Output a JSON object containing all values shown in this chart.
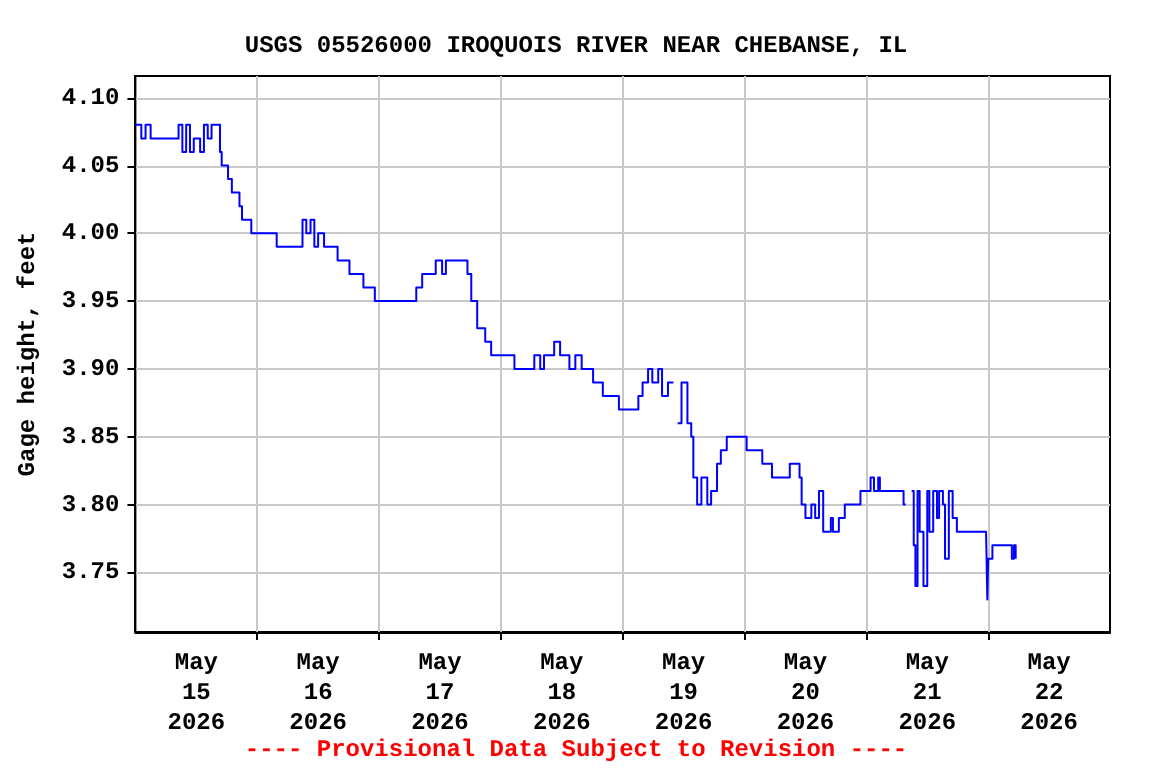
{
  "chart_data": {
    "type": "step",
    "title": "USGS 05526000 IROQUOIS RIVER NEAR CHEBANSE, IL",
    "ylabel": "Gage height, feet",
    "annotations": [
      "---- Provisional Data Subject to Revision ----"
    ],
    "x": [
      "2026-05-15T00:00",
      "2026-05-15T01:10",
      "2026-05-15T02:00",
      "2026-05-15T03:00",
      "2026-05-15T08:00",
      "2026-05-15T08:30",
      "2026-05-15T09:15",
      "2026-05-15T10:00",
      "2026-05-15T10:45",
      "2026-05-15T11:30",
      "2026-05-15T12:45",
      "2026-05-15T13:30",
      "2026-05-15T14:15",
      "2026-05-15T15:00",
      "2026-05-15T16:00",
      "2026-05-15T16:40",
      "2026-05-15T17:00",
      "2026-05-15T18:15",
      "2026-05-15T19:00",
      "2026-05-15T20:30",
      "2026-05-15T21:00",
      "2026-05-15T22:50",
      "2026-05-16T03:30",
      "2026-05-16T03:50",
      "2026-05-16T08:30",
      "2026-05-16T08:55",
      "2026-05-16T09:40",
      "2026-05-16T10:30",
      "2026-05-16T11:15",
      "2026-05-16T12:00",
      "2026-05-16T13:10",
      "2026-05-16T14:20",
      "2026-05-16T15:50",
      "2026-05-16T17:00",
      "2026-05-16T18:10",
      "2026-05-16T20:55",
      "2026-05-16T22:50",
      "2026-05-16T23:10",
      "2026-05-17T06:35",
      "2026-05-17T07:20",
      "2026-05-17T08:30",
      "2026-05-17T09:40",
      "2026-05-17T11:10",
      "2026-05-17T12:25",
      "2026-05-17T13:10",
      "2026-05-17T16:15",
      "2026-05-17T17:25",
      "2026-05-17T18:10",
      "2026-05-17T19:20",
      "2026-05-17T20:55",
      "2026-05-17T22:05",
      "2026-05-18T01:55",
      "2026-05-18T02:40",
      "2026-05-18T05:50",
      "2026-05-18T06:35",
      "2026-05-18T07:45",
      "2026-05-18T08:30",
      "2026-05-18T10:30",
      "2026-05-18T11:40",
      "2026-05-18T12:45",
      "2026-05-18T13:30",
      "2026-05-18T14:40",
      "2026-05-18T15:55",
      "2026-05-18T16:40",
      "2026-05-18T18:10",
      "2026-05-18T20:05",
      "2026-05-18T21:20",
      "2026-05-18T23:15",
      "2026-05-19T01:10",
      "2026-05-19T03:05",
      "2026-05-19T03:55",
      "2026-05-19T05:00",
      "2026-05-19T05:50",
      "2026-05-19T07:00",
      "2026-05-19T07:45",
      "2026-05-19T08:55",
      "2026-05-19T10:00",
      "2026-05-19T10:50",
      "2026-05-19T11:35",
      "2026-05-19T12:45",
      "2026-05-19T13:30",
      "2026-05-19T13:55",
      "2026-05-19T14:40",
      "2026-05-19T15:30",
      "2026-05-19T16:40",
      "2026-05-19T17:25",
      "2026-05-19T18:35",
      "2026-05-19T19:20",
      "2026-05-19T20:30",
      "2026-05-19T22:30",
      "2026-05-19T23:40",
      "2026-05-20T00:25",
      "2026-05-20T03:05",
      "2026-05-20T03:30",
      "2026-05-20T05:25",
      "2026-05-20T08:55",
      "2026-05-20T10:50",
      "2026-05-20T11:15",
      "2026-05-20T12:00",
      "2026-05-20T13:10",
      "2026-05-20T13:55",
      "2026-05-20T14:40",
      "2026-05-20T15:30",
      "2026-05-20T17:00",
      "2026-05-20T17:25",
      "2026-05-20T18:35",
      "2026-05-20T19:45",
      "2026-05-20T22:30",
      "2026-05-20T22:50",
      "2026-05-21T00:50",
      "2026-05-21T01:30",
      "2026-05-21T02:20",
      "2026-05-21T02:40",
      "2026-05-21T06:35",
      "2026-05-21T07:20",
      "2026-05-21T07:45",
      "2026-05-21T08:55",
      "2026-05-21T09:20",
      "2026-05-21T09:40",
      "2026-05-21T10:05",
      "2026-05-21T10:30",
      "2026-05-21T11:15",
      "2026-05-21T12:00",
      "2026-05-21T12:25",
      "2026-05-21T13:10",
      "2026-05-21T13:55",
      "2026-05-21T14:20",
      "2026-05-21T15:05",
      "2026-05-21T15:30",
      "2026-05-21T16:15",
      "2026-05-21T17:00",
      "2026-05-21T17:50",
      "2026-05-21T23:35",
      "2026-05-21T23:50",
      "2026-05-22T00:00",
      "2026-05-22T00:50",
      "2026-05-22T03:50",
      "2026-05-22T04:40",
      "2026-05-22T05:05",
      "2026-05-22T05:25"
    ],
    "series": [
      {
        "color": "#0000ff",
        "values": [
          4.08,
          4.07,
          4.08,
          4.07,
          4.07,
          4.08,
          4.06,
          4.08,
          4.06,
          4.07,
          4.06,
          4.08,
          4.07,
          4.08,
          4.08,
          4.06,
          4.05,
          4.04,
          4.03,
          4.02,
          4.01,
          4.0,
          4.0,
          3.99,
          3.99,
          4.01,
          4.0,
          4.01,
          3.99,
          4.0,
          3.99,
          3.99,
          3.98,
          3.98,
          3.97,
          3.96,
          3.96,
          3.95,
          3.95,
          3.96,
          3.97,
          3.97,
          3.98,
          3.97,
          3.98,
          3.98,
          3.97,
          3.95,
          3.93,
          3.92,
          3.91,
          3.91,
          3.9,
          3.9,
          3.91,
          3.9,
          3.91,
          3.92,
          3.91,
          3.91,
          3.9,
          3.91,
          3.9,
          3.9,
          3.89,
          3.88,
          3.88,
          3.87,
          3.87,
          3.88,
          3.89,
          3.9,
          3.89,
          3.9,
          3.88,
          3.89,
          null,
          3.86,
          3.89,
          3.86,
          3.85,
          3.82,
          3.8,
          3.82,
          3.8,
          3.81,
          3.83,
          3.84,
          3.85,
          3.85,
          3.85,
          3.84,
          3.84,
          3.83,
          3.82,
          3.83,
          3.82,
          3.8,
          3.79,
          3.8,
          3.79,
          3.81,
          3.78,
          3.79,
          3.78,
          3.79,
          3.8,
          3.8,
          3.81,
          3.82,
          3.81,
          3.82,
          3.81,
          3.81,
          3.8,
          null,
          3.81,
          3.77,
          3.74,
          3.81,
          3.78,
          3.74,
          3.81,
          3.78,
          3.81,
          3.79,
          3.81,
          3.8,
          3.76,
          3.81,
          3.79,
          3.78,
          3.78,
          3.73,
          3.76,
          3.77,
          3.77,
          3.76,
          3.77,
          3.76
        ]
      }
    ],
    "xlim": [
      "2026-05-15T00:00",
      "2026-05-23T00:00"
    ],
    "xticks": [
      {
        "value": "2026-05-15T12:00",
        "label": "May\n15\n2026"
      },
      {
        "value": "2026-05-16T00:00",
        "label": null
      },
      {
        "value": "2026-05-16T12:00",
        "label": "May\n16\n2026"
      },
      {
        "value": "2026-05-17T00:00",
        "label": null
      },
      {
        "value": "2026-05-17T12:00",
        "label": "May\n17\n2026"
      },
      {
        "value": "2026-05-18T00:00",
        "label": null
      },
      {
        "value": "2026-05-18T12:00",
        "label": "May\n18\n2026"
      },
      {
        "value": "2026-05-19T00:00",
        "label": null
      },
      {
        "value": "2026-05-19T12:00",
        "label": "May\n19\n2026"
      },
      {
        "value": "2026-05-20T00:00",
        "label": null
      },
      {
        "value": "2026-05-20T12:00",
        "label": "May\n20\n2026"
      },
      {
        "value": "2026-05-21T00:00",
        "label": null
      },
      {
        "value": "2026-05-21T12:00",
        "label": "May\n21\n2026"
      },
      {
        "value": "2026-05-22T00:00",
        "label": null
      },
      {
        "value": "2026-05-22T12:00",
        "label": "May\n22\n2026"
      }
    ],
    "ylim": [
      3.706,
      4.116
    ],
    "yticks": [
      {
        "value": 3.75,
        "label": "3.75"
      },
      {
        "value": 3.8,
        "label": "3.80"
      },
      {
        "value": 3.85,
        "label": "3.85"
      },
      {
        "value": 3.9,
        "label": "3.90"
      },
      {
        "value": 3.95,
        "label": "3.95"
      },
      {
        "value": 4.0,
        "label": "4.00"
      },
      {
        "value": 4.05,
        "label": "4.05"
      },
      {
        "value": 4.1,
        "label": "4.10"
      }
    ],
    "grid": true,
    "marker": "none",
    "line_style": "solid"
  }
}
